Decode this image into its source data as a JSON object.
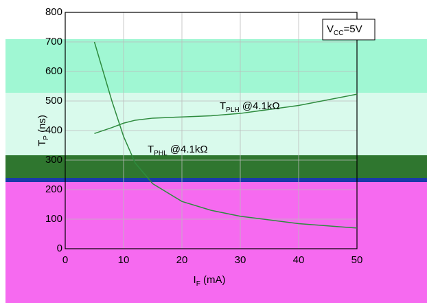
{
  "chart_data": {
    "type": "line",
    "xlabel": {
      "main": "I",
      "sub": "F",
      "rest": " (mA)"
    },
    "ylabel": {
      "main": "T",
      "sub": "P",
      "rest": " (ns)"
    },
    "condition": {
      "main": "V",
      "sub": "CC",
      "rest": "=5V"
    },
    "x": [
      5,
      8,
      10,
      12,
      15,
      20,
      25,
      30,
      40,
      50
    ],
    "series": [
      {
        "label": {
          "main": "T",
          "sub": "PLH",
          "rest": " @4.1kΩ"
        },
        "color": "#2e8b3e",
        "values": [
          390,
          410,
          425,
          435,
          442,
          446,
          450,
          458,
          485,
          523
        ]
      },
      {
        "label": {
          "main": "T",
          "sub": "PHL",
          "rest": " @4.1kΩ"
        },
        "color": "#2e8b3e",
        "values": [
          700,
          500,
          380,
          290,
          220,
          160,
          130,
          110,
          85,
          70
        ]
      }
    ],
    "xlim": [
      0,
      50
    ],
    "xticks": [
      0,
      10,
      20,
      30,
      40,
      50
    ],
    "ylim": [
      0,
      800
    ],
    "yticks": [
      0,
      100,
      200,
      300,
      400,
      500,
      600,
      700,
      800
    ],
    "grid": true
  }
}
